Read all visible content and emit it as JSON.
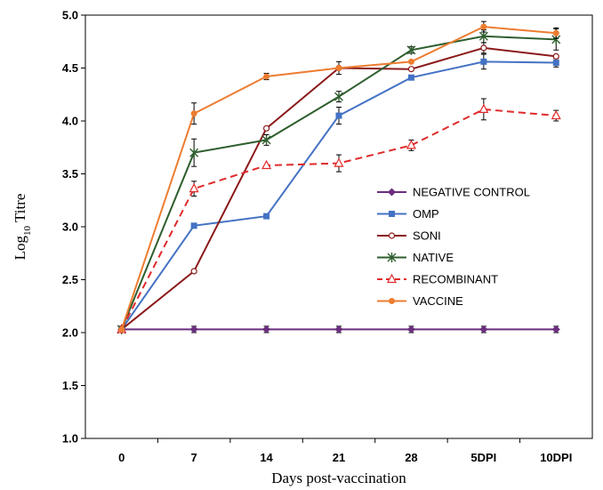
{
  "chart_data": {
    "type": "line",
    "title": "",
    "xlabel": "Days post-vaccination",
    "ylabel": "Log",
    "ylabel_sub": "10",
    "ylabel_suffix": " Titre",
    "categories": [
      "0",
      "7",
      "14",
      "21",
      "28",
      "5DPI",
      "10DPI"
    ],
    "ylim": [
      1.0,
      5.0
    ],
    "yticks": [
      "1.0",
      "1.5",
      "2.0",
      "2.5",
      "3.0",
      "3.5",
      "4.0",
      "4.5",
      "5.0"
    ],
    "grid": false,
    "legend_position": "center-right",
    "series": [
      {
        "name": "NEGATIVE CONTROL",
        "color": "#6B2D7E",
        "marker": "diamond",
        "dash": false,
        "values": [
          2.03,
          2.03,
          2.03,
          2.03,
          2.03,
          2.03,
          2.03
        ],
        "errors": [
          0.03,
          0.03,
          0.03,
          0.03,
          0.03,
          0.03,
          0.03
        ]
      },
      {
        "name": "OMP",
        "color": "#4472C4",
        "marker": "square",
        "dash": false,
        "values": [
          2.03,
          3.01,
          3.1,
          4.05,
          4.41,
          4.56,
          4.55
        ],
        "errors": [
          0,
          0.02,
          0,
          0.08,
          0,
          0.07,
          0.04
        ]
      },
      {
        "name": "SONI",
        "color": "#8B1A1A",
        "marker": "circle",
        "dash": false,
        "values": [
          2.03,
          2.58,
          3.93,
          4.5,
          4.49,
          4.69,
          4.61
        ],
        "errors": [
          0,
          0,
          0,
          0.06,
          0,
          0.05,
          0
        ]
      },
      {
        "name": "NATIVE",
        "color": "#2E5E2E",
        "marker": "asterisk",
        "dash": false,
        "values": [
          2.03,
          3.7,
          3.82,
          4.23,
          4.67,
          4.8,
          4.77
        ],
        "errors": [
          0,
          0.13,
          0.05,
          0.05,
          0.03,
          0.06,
          0.1
        ]
      },
      {
        "name": "RECOMBINANT",
        "color": "#E02A2A",
        "marker": "triangle",
        "dash": true,
        "values": [
          2.03,
          3.36,
          3.58,
          3.6,
          3.77,
          4.11,
          4.05
        ],
        "errors": [
          0,
          0.07,
          0,
          0.08,
          0.05,
          0.1,
          0.05
        ]
      },
      {
        "name": "VACCINE",
        "color": "#ED7D31",
        "marker": "dot",
        "dash": false,
        "values": [
          2.03,
          4.07,
          4.42,
          4.5,
          4.56,
          4.89,
          4.83
        ],
        "errors": [
          0,
          0.1,
          0.03,
          0,
          0,
          0.05,
          0.05
        ]
      }
    ]
  }
}
